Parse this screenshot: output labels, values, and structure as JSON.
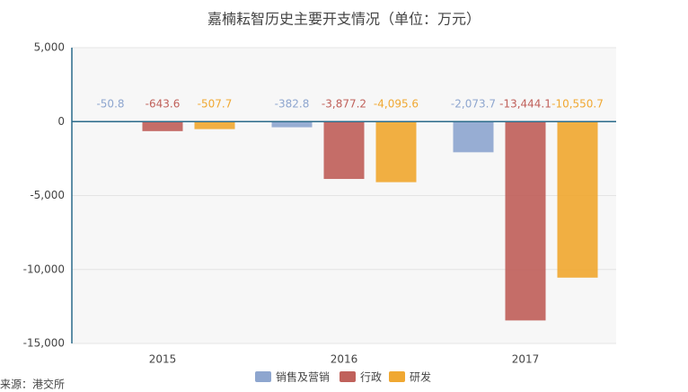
{
  "chart_data": {
    "type": "bar",
    "title": "嘉楠耘智历史主要开支情况（单位：万元）",
    "categories": [
      "2015",
      "2016",
      "2017"
    ],
    "series": [
      {
        "name": "销售及营销",
        "color": "#8ea6cf",
        "values": [
          -50.8,
          -382.8,
          -2073.7
        ],
        "value_labels": [
          "-50.8",
          "-382.8",
          "-2,073.7"
        ]
      },
      {
        "name": "行政",
        "color": "#c0615b",
        "values": [
          -643.6,
          -3877.2,
          -13444.1
        ],
        "value_labels": [
          "-643.6",
          "-3,877.2",
          "-13,444.1"
        ]
      },
      {
        "name": "研发",
        "color": "#f0a832",
        "values": [
          -507.7,
          -4095.6,
          -10550.7
        ],
        "value_labels": [
          "-507.7",
          "-4,095.6",
          "-10,550.7"
        ]
      }
    ],
    "ylim": [
      -15000,
      5000
    ],
    "yticks": [
      {
        "value": 5000,
        "label": "5,000"
      },
      0,
      {
        "value": -5000,
        "label": "-5,000"
      },
      {
        "value": -10000,
        "label": "-10,000"
      },
      {
        "value": -15000,
        "label": "-15,000"
      }
    ],
    "grid": true,
    "legend": "bottom",
    "source": "来源：港交所"
  }
}
